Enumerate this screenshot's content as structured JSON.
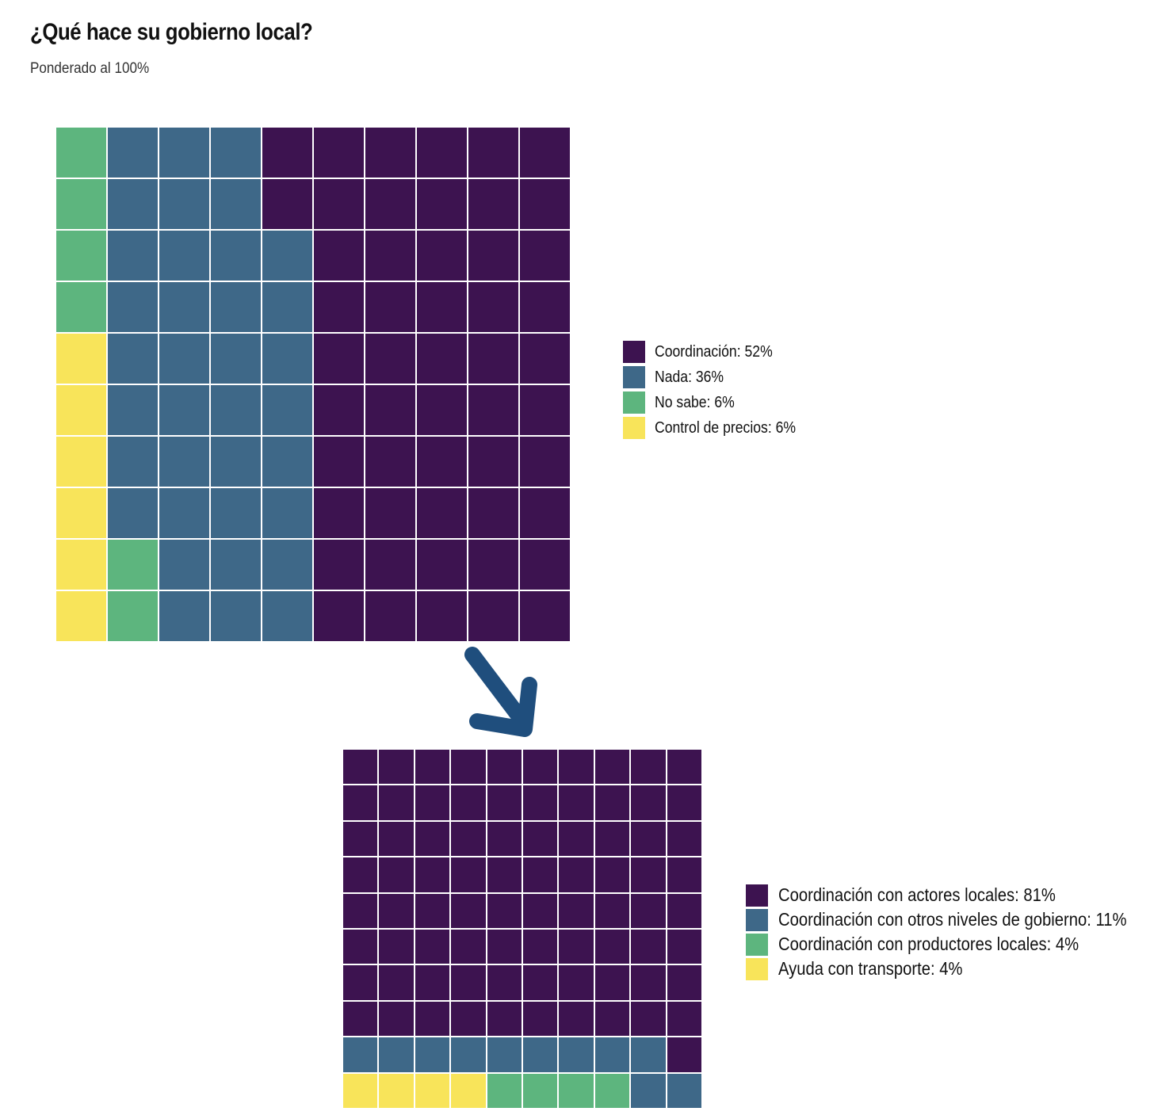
{
  "chart_data": [
    {
      "type": "waffle",
      "title": "¿Qué hace su gobierno local?",
      "subtitle": "Ponderado al 100%",
      "grid": {
        "rows": 10,
        "cols": 10,
        "fill_order": "column-major, from right column, top to bottom"
      },
      "series": [
        {
          "name": "Coordinación",
          "label": "Coordinación: 52%",
          "value": 52,
          "color": "#3d1350"
        },
        {
          "name": "Nada",
          "label": "Nada: 36%",
          "value": 36,
          "color": "#3e6888"
        },
        {
          "name": "No sabe",
          "label": "No sabe: 6%",
          "value": 6,
          "color": "#5db57e"
        },
        {
          "name": "Control de precios",
          "label": "Control de precios: 6%",
          "value": 6,
          "color": "#f8e45a"
        }
      ],
      "legend_position": "right"
    },
    {
      "type": "waffle",
      "grid": {
        "rows": 10,
        "cols": 10,
        "fill_order": "row-major, from top row, right to left"
      },
      "series": [
        {
          "name": "Coordinación con actores locales",
          "label": "Coordinación con actores locales: 81%",
          "value": 81,
          "color": "#3d1350"
        },
        {
          "name": "Coordinación con otros niveles de gobierno",
          "label": "Coordinación con otros niveles de gobierno: 11%",
          "value": 11,
          "color": "#3e6888"
        },
        {
          "name": "Coordinación con productores locales",
          "label": "Coordinación con productores locales: 4%",
          "value": 4,
          "color": "#5db57e"
        },
        {
          "name": "Ayuda con transporte",
          "label": "Ayuda con transporte: 4%",
          "value": 4,
          "color": "#f8e45a"
        }
      ],
      "legend_position": "right"
    }
  ],
  "arrow": {
    "color": "#1f4e7d",
    "direction": "down-right"
  }
}
